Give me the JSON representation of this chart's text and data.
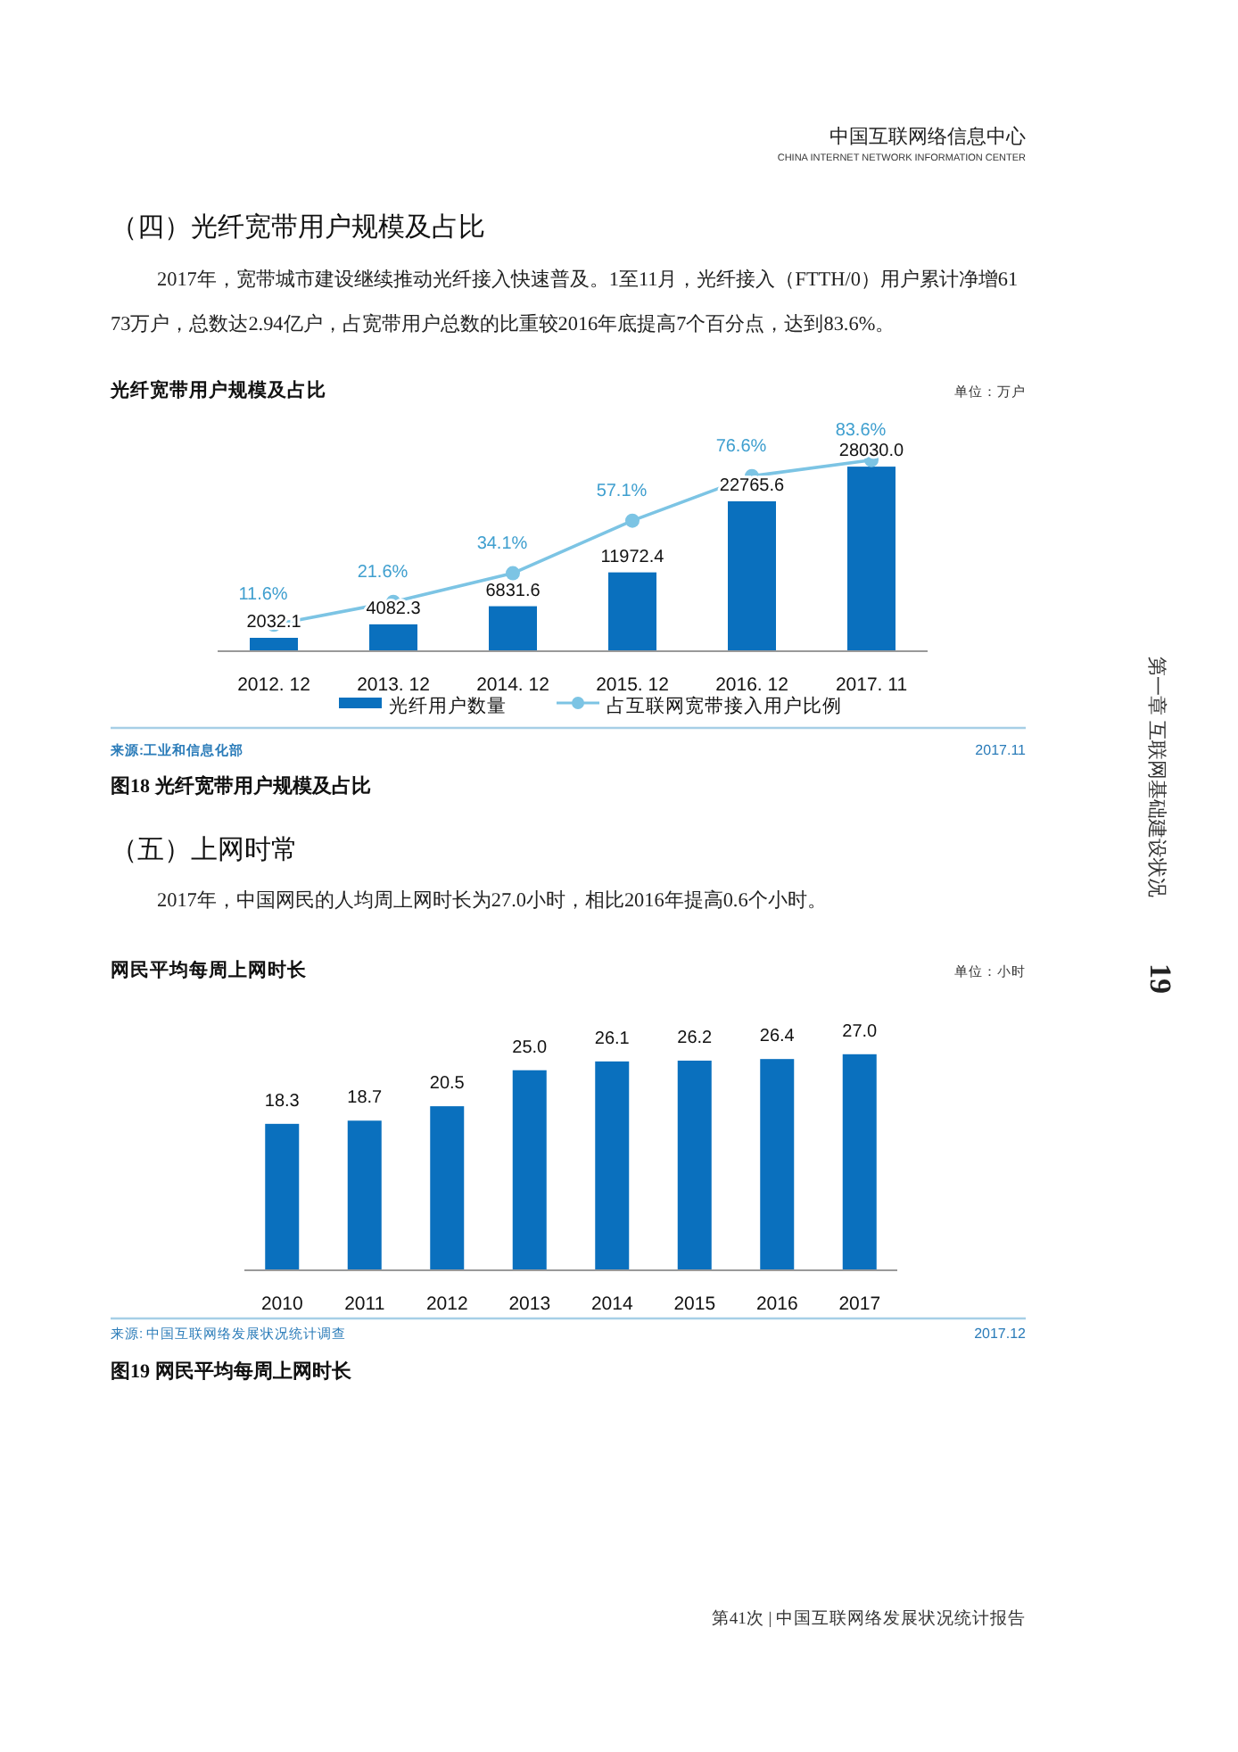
{
  "chart_data": [
    {
      "type": "bar",
      "title": "光纤宽带用户规模及占比",
      "categories": [
        "2012. 12",
        "2013. 12",
        "2014. 12",
        "2015. 12",
        "2016. 12",
        "2017. 11"
      ],
      "series": [
        {
          "name": "光纤用户数量",
          "type": "bar",
          "color": "#0a70be",
          "values": [
            2032.1,
            4082.3,
            6831.6,
            11972.4,
            22765.6,
            28030.0
          ],
          "value_labels": [
            "2032.1",
            "4082.3",
            "6831.6",
            "11972.4",
            "22765.6",
            "28030.0"
          ]
        },
        {
          "name": "占互联网宽带接入用户比例",
          "type": "line",
          "axis": "y2",
          "color": "#7cc4e4",
          "values": [
            11.6,
            21.6,
            34.1,
            57.1,
            76.6,
            83.6
          ],
          "value_labels": [
            "11.6%",
            "21.6%",
            "34.1%",
            "57.1%",
            "76.6%",
            "83.6%"
          ]
        }
      ],
      "data_labels": true,
      "legend": "bottom",
      "marker": "circle",
      "annotations": [
        "中国互联网络信息中心",
        "CHINA INTERNET NETWORK INFORMATION CENTER",
        "（四）光纤宽带用户规模及占比",
        "2017年，宽带城市建设继续推动光纤接入快速普及。1至11月，光纤接入（FTTH/0）用户累计净增6173万户，总数达2.94亿户，占宽带用户总数的比重较2016年底提高7个百分点，达到83.6%。",
        "单位：万户",
        "来源:工业和信息化部",
        "2017.11",
        "图18  光纤宽带用户规模及占比",
        "19",
        "第一章  互联网基础建设状况",
        "第41次 | 中国互联网络发展状况统计报告"
      ]
    },
    {
      "type": "bar",
      "title": "网民平均每周上网时长",
      "categories": [
        "2010",
        "2011",
        "2012",
        "2013",
        "2014",
        "2015",
        "2016",
        "2017"
      ],
      "values": [
        18.3,
        18.7,
        20.5,
        25.0,
        26.1,
        26.2,
        26.4,
        27.0
      ],
      "value_labels": [
        "18.3",
        "18.7",
        "20.5",
        "25.0",
        "26.1",
        "26.2",
        "26.4",
        "27.0"
      ],
      "color": "#0a70be",
      "data_labels": true,
      "legend": false,
      "annotations": [
        "（五）上网时常",
        "2017年，中国网民的人均周上网时长为27.0小时，相比2016年提高0.6个小时。",
        "单位：小时",
        "来源: 中国互联网络发展状况统计调查",
        "2017.12",
        "图19  网民平均每周上网时长"
      ]
    }
  ]
}
